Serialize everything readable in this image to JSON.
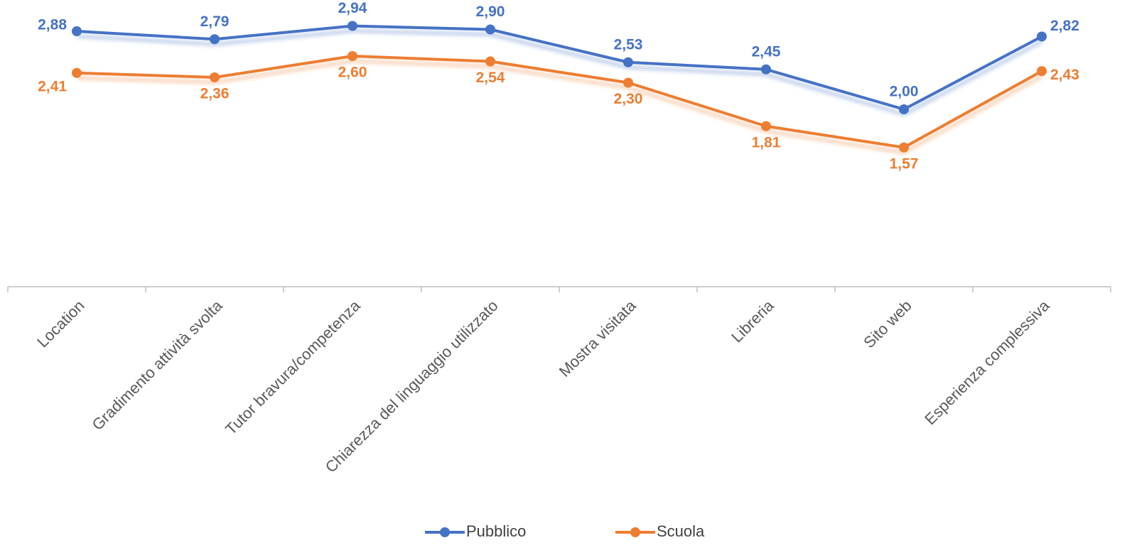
{
  "chart_data": {
    "type": "line",
    "categories": [
      "Location",
      "Gradimento attività svolta",
      "Tutor bravura/competenza",
      "Chiarezza del linguaggio utilizzato",
      "Mostra visitata",
      "Libreria",
      "Sito web",
      "Esperienza complessiva"
    ],
    "series": [
      {
        "name": "Pubblico",
        "color": "#4472c4",
        "values": [
          2.88,
          2.79,
          2.94,
          2.9,
          2.53,
          2.45,
          2.0,
          2.82
        ],
        "value_labels": [
          "2,88",
          "2,79",
          "2,94",
          "2,90",
          "2,53",
          "2,45",
          "2,00",
          "2,82"
        ]
      },
      {
        "name": "Scuola",
        "color": "#ed7d31",
        "values": [
          2.41,
          2.36,
          2.6,
          2.54,
          2.3,
          1.81,
          1.57,
          2.43
        ],
        "value_labels": [
          "2,41",
          "2,36",
          "2,60",
          "2,54",
          "2,30",
          "1,81",
          "1,57",
          "2,43"
        ]
      }
    ],
    "ylim": [
      0,
      3.2
    ],
    "legend": "bottom"
  }
}
